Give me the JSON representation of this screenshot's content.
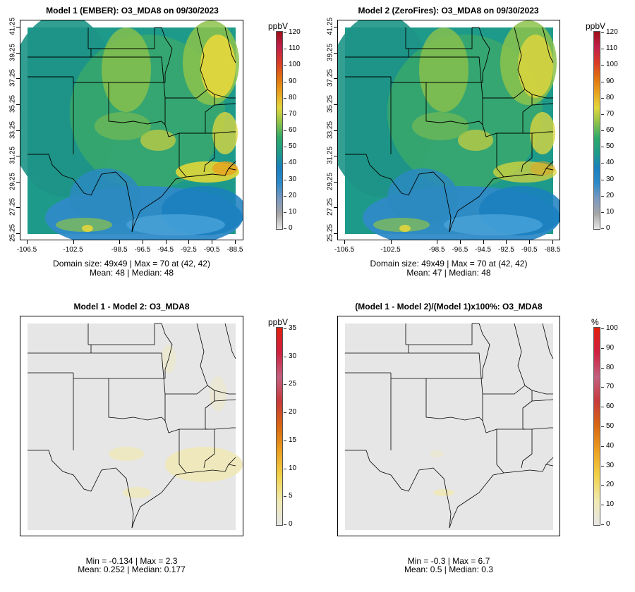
{
  "panels": [
    {
      "id": "m1",
      "title": "Model 1 (EMBER): O3_MDA8 on 09/30/2023",
      "stats_line1": "Domain size: 49x49 | Max = 70 at (42, 42)",
      "stats_line2": "Mean: 48 |  Median: 48",
      "unit": "ppbV",
      "colorbar_ticks": [
        "0",
        "10",
        "20",
        "30",
        "40",
        "50",
        "60",
        "70",
        "80",
        "90",
        "100",
        "110",
        "120"
      ],
      "show_axes": true
    },
    {
      "id": "m2",
      "title": "Model 2 (ZeroFires): O3_MDA8 on 09/30/2023",
      "stats_line1": "Domain size: 49x49 | Max = 70 at (42, 42)",
      "stats_line2": "Mean: 47 |  Median: 48",
      "unit": "ppbV",
      "colorbar_ticks": [
        "0",
        "10",
        "20",
        "30",
        "40",
        "50",
        "60",
        "70",
        "80",
        "90",
        "100",
        "110",
        "120"
      ],
      "show_axes": true
    },
    {
      "id": "diff",
      "title": "Model 1 - Model 2: O3_MDA8",
      "stats_line1": "Min = -0.134 | Max = 2.3",
      "stats_line2": "Mean: 0.252 |  Median: 0.177",
      "unit": "ppbV",
      "colorbar_ticks": [
        "0",
        "5",
        "10",
        "15",
        "20",
        "25",
        "30",
        "35"
      ],
      "show_axes": false
    },
    {
      "id": "pct",
      "title": "(Model 1 - Model 2)/(Model 1)x100%: O3_MDA8",
      "stats_line1": "Min = -0.3 | Max = 6.7",
      "stats_line2": "Mean: 0.5 |  Median: 0.3",
      "unit": "%",
      "colorbar_ticks": [
        "0",
        "10",
        "20",
        "30",
        "40",
        "50",
        "60",
        "70",
        "80",
        "90",
        "100"
      ],
      "show_axes": false
    }
  ],
  "y_ticks": [
    "25.25",
    "27.25",
    "29.25",
    "31.25",
    "33.25",
    "35.25",
    "37.25",
    "39.25",
    "41.25"
  ],
  "x_ticks": [
    "-106.5",
    "-102.5",
    "-98.5",
    "-96.5",
    "-94.5",
    "-92.5",
    "-90.5",
    "-88.5"
  ],
  "colors": {
    "ozone_scale": [
      "#e6e6e6",
      "#a6a6a6",
      "#7a98c0",
      "#2f8ac7",
      "#1a7fbf",
      "#1e9a8a",
      "#2ea86a",
      "#8cc24a",
      "#e2d63c",
      "#e8a21e",
      "#e07010",
      "#d83a2a",
      "#c0204a",
      "#a01018"
    ],
    "diff_scale": [
      "#e6e6e6",
      "#f0e9b0",
      "#f2d24a",
      "#eba020",
      "#d86812",
      "#c83a3a",
      "#c26080",
      "#d02040",
      "#e02010"
    ]
  }
}
